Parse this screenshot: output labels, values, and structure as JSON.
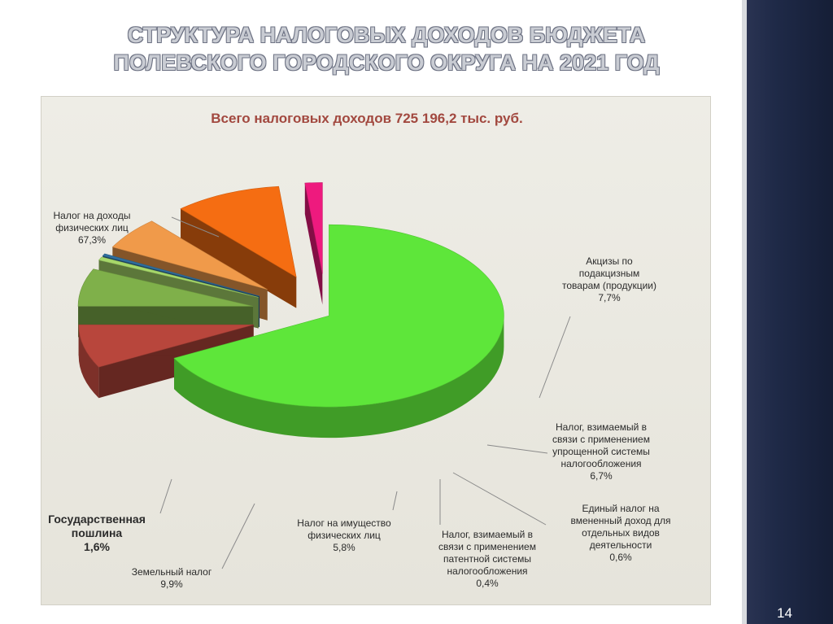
{
  "slide": {
    "title_line1": "СТРУКТУРА НАЛОГОВЫХ ДОХОДОВ БЮДЖЕТА",
    "title_line2": "ПОЛЕВСКОГО ГОРОДСКОГО ОКРУГА НА 2021 ГОД",
    "page_number": "14"
  },
  "chart_data": {
    "type": "pie",
    "title": "Всего налоговых доходов 725 196,2 тыс. руб.",
    "value_unit": "%",
    "slices": [
      {
        "label_lines": [
          "Налог на доходы",
          "физических лиц"
        ],
        "value": 67.3,
        "value_label": "67,3%",
        "color": "#5ee63a"
      },
      {
        "label_lines": [
          "Акцизы по",
          "подакцизным",
          "товарам (продукции)"
        ],
        "value": 7.7,
        "value_label": "7,7%",
        "color": "#b8463c"
      },
      {
        "label_lines": [
          "Налог, взимаемый в",
          "связи с применением",
          "упрощенной системы",
          "налогообложения"
        ],
        "value": 6.7,
        "value_label": "6,7%",
        "color": "#7fb04a"
      },
      {
        "label_lines": [
          "Единый налог на",
          "вмененный доход для",
          "отдельных видов",
          "деятельности"
        ],
        "value": 0.6,
        "value_label": "0,6%",
        "color": "#a7d86a"
      },
      {
        "label_lines": [
          "Налог, взимаемый в",
          "связи с применением",
          "патентной системы",
          "налогообложения"
        ],
        "value": 0.4,
        "value_label": "0,4%",
        "color": "#2f6f9e"
      },
      {
        "label_lines": [
          "Налог на имущество",
          "физических лиц"
        ],
        "value": 5.8,
        "value_label": "5,8%",
        "color": "#f09a4a"
      },
      {
        "label_lines": [
          "Земельный налог"
        ],
        "value": 9.9,
        "value_label": "9,9%",
        "color": "#f56d12"
      },
      {
        "label_lines": [
          "Государственная",
          "пошлина"
        ],
        "value": 1.6,
        "value_label": "1,6%",
        "color": "#ee1a7e"
      }
    ]
  }
}
